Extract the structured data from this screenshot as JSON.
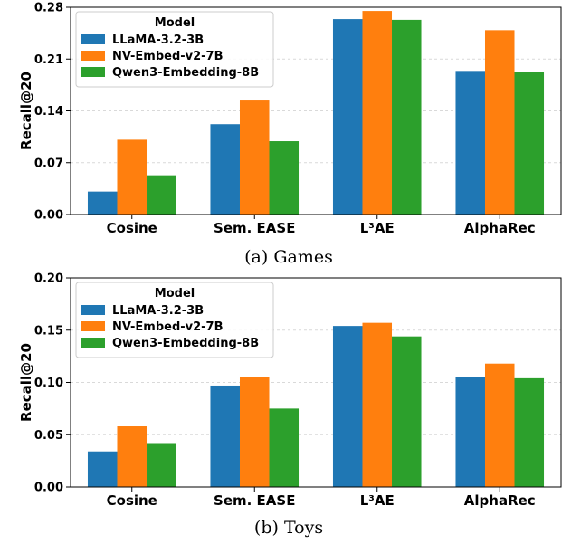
{
  "colors": {
    "LLaMA-3.2-3B": "#1f77b4",
    "NV-Embed-v2-7B": "#ff7f0e",
    "Qwen3-Embedding-8B": "#2ca02c",
    "grid": "#d9d9d9"
  },
  "chart_data": [
    {
      "type": "bar",
      "caption": "(a) Games",
      "categories": [
        "Cosine",
        "Sem. EASE",
        "L³AE",
        "AlphaRec"
      ],
      "ylabel": "Recall@20",
      "xlabel": "",
      "ylim": [
        0,
        0.28
      ],
      "yticks": [
        0.0,
        0.07,
        0.14,
        0.21,
        0.28
      ],
      "ytick_labels": [
        "0.00",
        "0.07",
        "0.14",
        "0.21",
        "0.28"
      ],
      "grid": "horizontal dashed",
      "legend": {
        "title": "Model",
        "placement": "top-left"
      },
      "series": [
        {
          "name": "LLaMA-3.2-3B",
          "values": [
            0.031,
            0.122,
            0.264,
            0.194
          ]
        },
        {
          "name": "NV-Embed-v2-7B",
          "values": [
            0.101,
            0.154,
            0.275,
            0.249
          ]
        },
        {
          "name": "Qwen3-Embedding-8B",
          "values": [
            0.053,
            0.099,
            0.263,
            0.193
          ]
        }
      ]
    },
    {
      "type": "bar",
      "caption": "(b) Toys",
      "categories": [
        "Cosine",
        "Sem. EASE",
        "L³AE",
        "AlphaRec"
      ],
      "ylabel": "Recall@20",
      "xlabel": "",
      "ylim": [
        0,
        0.2
      ],
      "yticks": [
        0.0,
        0.05,
        0.1,
        0.15,
        0.2
      ],
      "ytick_labels": [
        "0.00",
        "0.05",
        "0.10",
        "0.15",
        "0.20"
      ],
      "grid": "horizontal dashed",
      "legend": {
        "title": "Model",
        "placement": "top-left"
      },
      "series": [
        {
          "name": "LLaMA-3.2-3B",
          "values": [
            0.034,
            0.097,
            0.154,
            0.105
          ]
        },
        {
          "name": "NV-Embed-v2-7B",
          "values": [
            0.058,
            0.105,
            0.157,
            0.118
          ]
        },
        {
          "name": "Qwen3-Embedding-8B",
          "values": [
            0.042,
            0.075,
            0.144,
            0.104
          ]
        }
      ]
    }
  ]
}
